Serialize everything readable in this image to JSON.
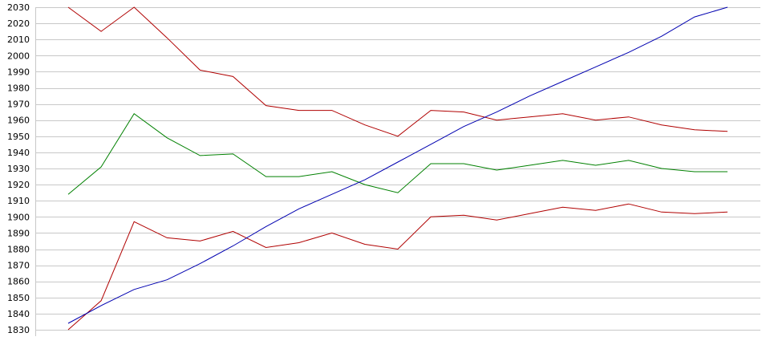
{
  "chart_data": {
    "type": "line",
    "title": "",
    "xlabel": "",
    "ylabel": "",
    "ylim": [
      1830,
      2030
    ],
    "y_ticks": [
      1830,
      1840,
      1850,
      1860,
      1870,
      1880,
      1890,
      1900,
      1910,
      1920,
      1930,
      1940,
      1950,
      1960,
      1970,
      1980,
      1990,
      2000,
      2010,
      2020,
      2030
    ],
    "grid": true,
    "legend": "none",
    "x": [
      1,
      2,
      3,
      4,
      5,
      6,
      7,
      8,
      9,
      10,
      11,
      12,
      13,
      14,
      15,
      16,
      17,
      18,
      19,
      20,
      21
    ],
    "series": [
      {
        "color": "#b00000",
        "values": [
          2030,
          2015,
          2030,
          2011,
          1991,
          1987,
          1969,
          1966,
          1966,
          1957,
          1950,
          1966,
          1965,
          1960,
          1962,
          1964,
          1960,
          1962,
          1957,
          1954,
          1953
        ]
      },
      {
        "color": "#008000",
        "values": [
          1914,
          1931,
          1964,
          1949,
          1938,
          1939,
          1925,
          1925,
          1928,
          1920,
          1915,
          1933,
          1933,
          1929,
          1932,
          1935,
          1932,
          1935,
          1930,
          1928,
          1928
        ]
      },
      {
        "color": "#b00000",
        "values": [
          1830,
          1848,
          1897,
          1887,
          1885,
          1891,
          1881,
          1884,
          1890,
          1883,
          1880,
          1900,
          1901,
          1898,
          1902,
          1906,
          1904,
          1908,
          1903,
          1902,
          1903
        ]
      },
      {
        "color": "#0000b0",
        "values": [
          1834,
          1845,
          1855,
          1861,
          1871,
          1882,
          1894,
          1905,
          1914,
          1923,
          1934,
          1945,
          1956,
          1965,
          1975,
          1984,
          1993,
          2002,
          2012,
          2024,
          2030
        ]
      }
    ]
  }
}
